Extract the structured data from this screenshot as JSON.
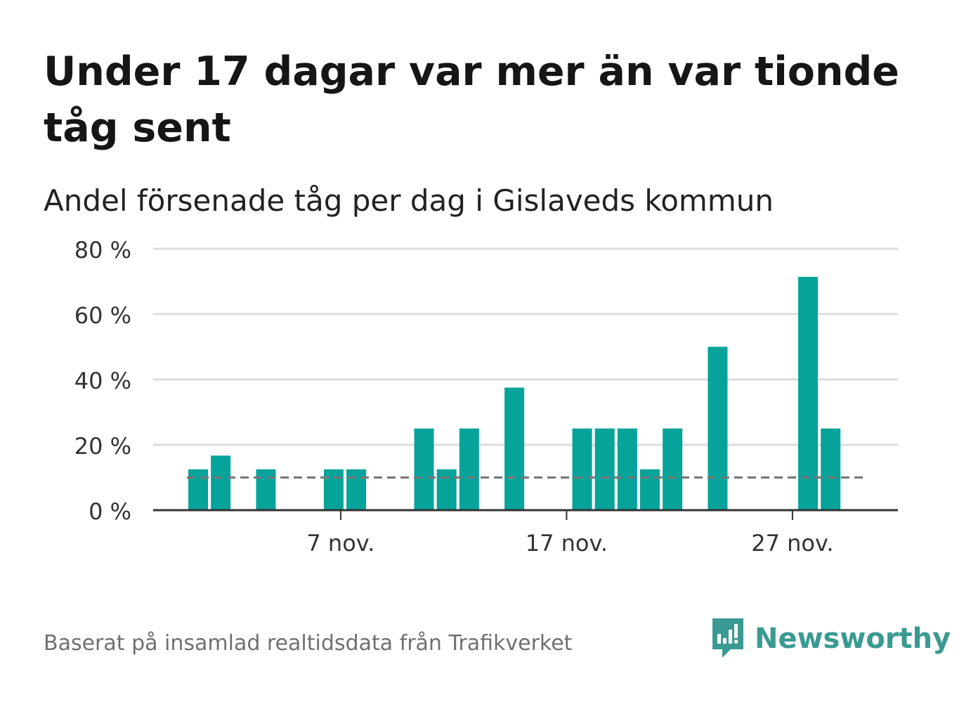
{
  "title": "Under 17 dagar var mer än var tionde tåg sent",
  "subtitle": "Andel försenade tåg per dag i Gislaveds kommun",
  "footer": "Baserat på insamlad realtidsdata från Trafikverket",
  "brand": {
    "name": "Newsworthy",
    "icon": "newsworthy-logo-icon",
    "color": "#3a9a92"
  },
  "chart_data": {
    "type": "bar",
    "bar_color": "#05a399",
    "reference_color": "#767676",
    "days": [
      {
        "day": 1,
        "value": 12.5
      },
      {
        "day": 2,
        "value": 16.7
      },
      {
        "day": 3,
        "value": 0
      },
      {
        "day": 4,
        "value": 12.5
      },
      {
        "day": 5,
        "value": 0
      },
      {
        "day": 6,
        "value": 0
      },
      {
        "day": 7,
        "value": 12.5
      },
      {
        "day": 8,
        "value": 12.5
      },
      {
        "day": 9,
        "value": 0
      },
      {
        "day": 10,
        "value": 0
      },
      {
        "day": 11,
        "value": 25
      },
      {
        "day": 12,
        "value": 12.5
      },
      {
        "day": 13,
        "value": 25
      },
      {
        "day": 14,
        "value": 0
      },
      {
        "day": 15,
        "value": 37.5
      },
      {
        "day": 16,
        "value": 0
      },
      {
        "day": 17,
        "value": 0
      },
      {
        "day": 18,
        "value": 25
      },
      {
        "day": 19,
        "value": 25
      },
      {
        "day": 20,
        "value": 25
      },
      {
        "day": 21,
        "value": 12.5
      },
      {
        "day": 22,
        "value": 25
      },
      {
        "day": 23,
        "value": 0
      },
      {
        "day": 24,
        "value": 50
      },
      {
        "day": 25,
        "value": 0
      },
      {
        "day": 26,
        "value": 0
      },
      {
        "day": 27,
        "value": 0
      },
      {
        "day": 28,
        "value": 71.4
      },
      {
        "day": 29,
        "value": 25
      }
    ],
    "reference_line": 10,
    "ylim": [
      0,
      80
    ],
    "yticks": [
      {
        "value": 0,
        "label": "0 %"
      },
      {
        "value": 20,
        "label": "20 %"
      },
      {
        "value": 40,
        "label": "40 %"
      },
      {
        "value": 60,
        "label": "60 %"
      },
      {
        "value": 80,
        "label": "80 %"
      }
    ],
    "xticks": [
      {
        "day": 7,
        "label": "7 nov."
      },
      {
        "day": 17,
        "label": "17 nov."
      },
      {
        "day": 27,
        "label": "27 nov."
      }
    ],
    "grid": true,
    "xlabel": "",
    "ylabel": ""
  }
}
